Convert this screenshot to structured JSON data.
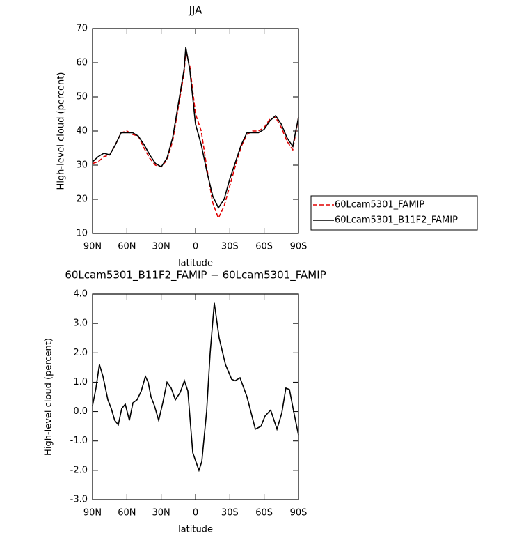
{
  "chart_data": [
    {
      "type": "line",
      "title": "JJA",
      "xlabel": "latitude",
      "ylabel": "High-level cloud (percent)",
      "xlim": [
        90,
        -90
      ],
      "ylim": [
        10,
        70
      ],
      "xticks": [
        {
          "value": 90,
          "label": "90N"
        },
        {
          "value": 60,
          "label": "60N"
        },
        {
          "value": 30,
          "label": "30N"
        },
        0,
        {
          "value": -30,
          "label": "30S"
        },
        {
          "value": -60,
          "label": "60S"
        },
        {
          "value": -90,
          "label": "90S"
        }
      ],
      "yticks": [
        10,
        20,
        30,
        40,
        50,
        60,
        70
      ],
      "legend": "right",
      "x": [
        90,
        85,
        80,
        75,
        70,
        65,
        60,
        55,
        50,
        45,
        40,
        35,
        30,
        25,
        20,
        15,
        10,
        8.5,
        5,
        0,
        -5,
        -10,
        -15,
        -20,
        -25,
        -30,
        -35,
        -40,
        -45,
        -50,
        -55,
        -60,
        -65,
        -70,
        -75,
        -80,
        -85,
        -90
      ],
      "series": [
        {
          "name": "60Lcam5301_FAMIP",
          "color": "#e00000",
          "linestyle": "dashed",
          "values": [
            30.5,
            31,
            32.5,
            33,
            36,
            39.5,
            40,
            39,
            38.5,
            35,
            32,
            30,
            29.5,
            31.5,
            37,
            47,
            57,
            63.5,
            59,
            45,
            40,
            29,
            19,
            14.5,
            18,
            24,
            30,
            35.5,
            39,
            40,
            40,
            41,
            43.5,
            44,
            41,
            37,
            34.5,
            44
          ]
        },
        {
          "name": "60Lcam5301_B11F2_FAMIP",
          "color": "#000000",
          "linestyle": "solid",
          "values": [
            31,
            32.5,
            33.5,
            33,
            36,
            39.5,
            39.5,
            39.5,
            38.5,
            36,
            33,
            30.5,
            29.5,
            32,
            38,
            48,
            58,
            64.5,
            58,
            42,
            36,
            28,
            21,
            17.5,
            20,
            26,
            31,
            36,
            39.5,
            39.5,
            39.5,
            40.5,
            43,
            44.5,
            42,
            38,
            35.5,
            44
          ]
        }
      ]
    },
    {
      "type": "line",
      "title": "60Lcam5301_B11F2_FAMIP − 60Lcam5301_FAMIP",
      "xlabel": "latitude",
      "ylabel": "High-level cloud (percent)",
      "xlim": [
        90,
        -90
      ],
      "ylim": [
        -3,
        4
      ],
      "xticks": [
        {
          "value": 90,
          "label": "90N"
        },
        {
          "value": 60,
          "label": "60N"
        },
        {
          "value": 30,
          "label": "30N"
        },
        0,
        {
          "value": -30,
          "label": "30S"
        },
        {
          "value": -60,
          "label": "60S"
        },
        {
          "value": -90,
          "label": "90S"
        }
      ],
      "yticks": [
        {
          "value": -3,
          "label": "-3.0"
        },
        {
          "value": -2,
          "label": "-2.0"
        },
        {
          "value": -1,
          "label": "-1.0"
        },
        {
          "value": 0,
          "label": "0.0"
        },
        {
          "value": 1,
          "label": "1.0"
        },
        {
          "value": 2,
          "label": "2.0"
        },
        {
          "value": 3,
          "label": "3.0"
        },
        {
          "value": 4,
          "label": "4.0"
        }
      ],
      "x": [
        90,
        87,
        84,
        80.9,
        76.6,
        73.6,
        70.6,
        67.5,
        64.5,
        61.4,
        57.8,
        54.7,
        51.1,
        47.4,
        43.8,
        41.4,
        38.9,
        35.9,
        32.2,
        28.6,
        24.9,
        21.3,
        17.6,
        13.4,
        9.7,
        6.7,
        2.4,
        -3,
        -5.5,
        -9.7,
        -12.8,
        -16.4,
        -20.7,
        -26.2,
        -31.6,
        -34.7,
        -38.9,
        -45,
        -52.3,
        -57.2,
        -60.8,
        -65.7,
        -71.2,
        -75.4,
        -79,
        -82.1,
        -85.8,
        -90
      ],
      "series": [
        {
          "color": "#000000",
          "linestyle": "solid",
          "values": [
            0.2,
            0.8,
            1.6,
            1.2,
            0.4,
            0.1,
            -0.3,
            -0.45,
            0.1,
            0.25,
            -0.3,
            0.3,
            0.4,
            0.7,
            1.2,
            1.0,
            0.5,
            0.2,
            -0.3,
            0.3,
            1.0,
            0.8,
            0.4,
            0.65,
            1.05,
            0.7,
            -1.4,
            -2.0,
            -1.7,
            0,
            2.0,
            3.7,
            2.5,
            1.6,
            1.1,
            1.05,
            1.15,
            0.5,
            -0.6,
            -0.5,
            -0.15,
            0.05,
            -0.6,
            -0.05,
            0.8,
            0.75,
            0.0,
            -0.8
          ]
        }
      ]
    }
  ]
}
